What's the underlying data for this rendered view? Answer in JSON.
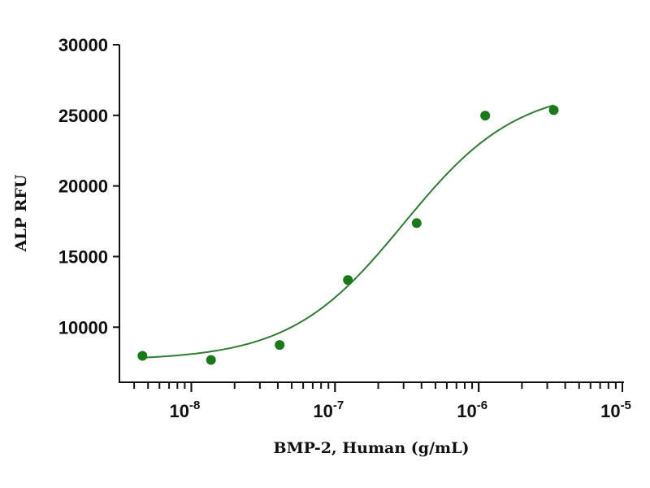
{
  "chart_data": {
    "type": "scatter",
    "title": "",
    "xlabel": "BMP-2, Human (g/mL)",
    "ylabel": "ALP RFU",
    "xscale": "log",
    "xlim": [
      3.16e-09,
      1e-05
    ],
    "ylim": [
      6100,
      30000
    ],
    "grid": false,
    "x_ticks": [
      {
        "base": "10",
        "exp": "-8"
      },
      {
        "base": "10",
        "exp": "-7"
      },
      {
        "base": "10",
        "exp": "-6"
      },
      {
        "base": "10",
        "exp": "-5"
      }
    ],
    "y_ticks": [
      "10000",
      "15000",
      "20000",
      "25000",
      "30000"
    ],
    "series": [
      {
        "name": "BMP-2",
        "color": "#1a7a1a",
        "x": [
          4.57e-09,
          1.37e-08,
          4.12e-08,
          1.23e-07,
          3.7e-07,
          1.11e-06,
          3.33e-06
        ],
        "y": [
          7970,
          7680,
          8740,
          13340,
          17370,
          24980,
          25370
        ]
      }
    ],
    "fit": {
      "model": "4PL",
      "color": "#2e7d32",
      "bottom": 7650,
      "top": 27000,
      "ec50": 3e-07,
      "hill": 1.1
    }
  }
}
